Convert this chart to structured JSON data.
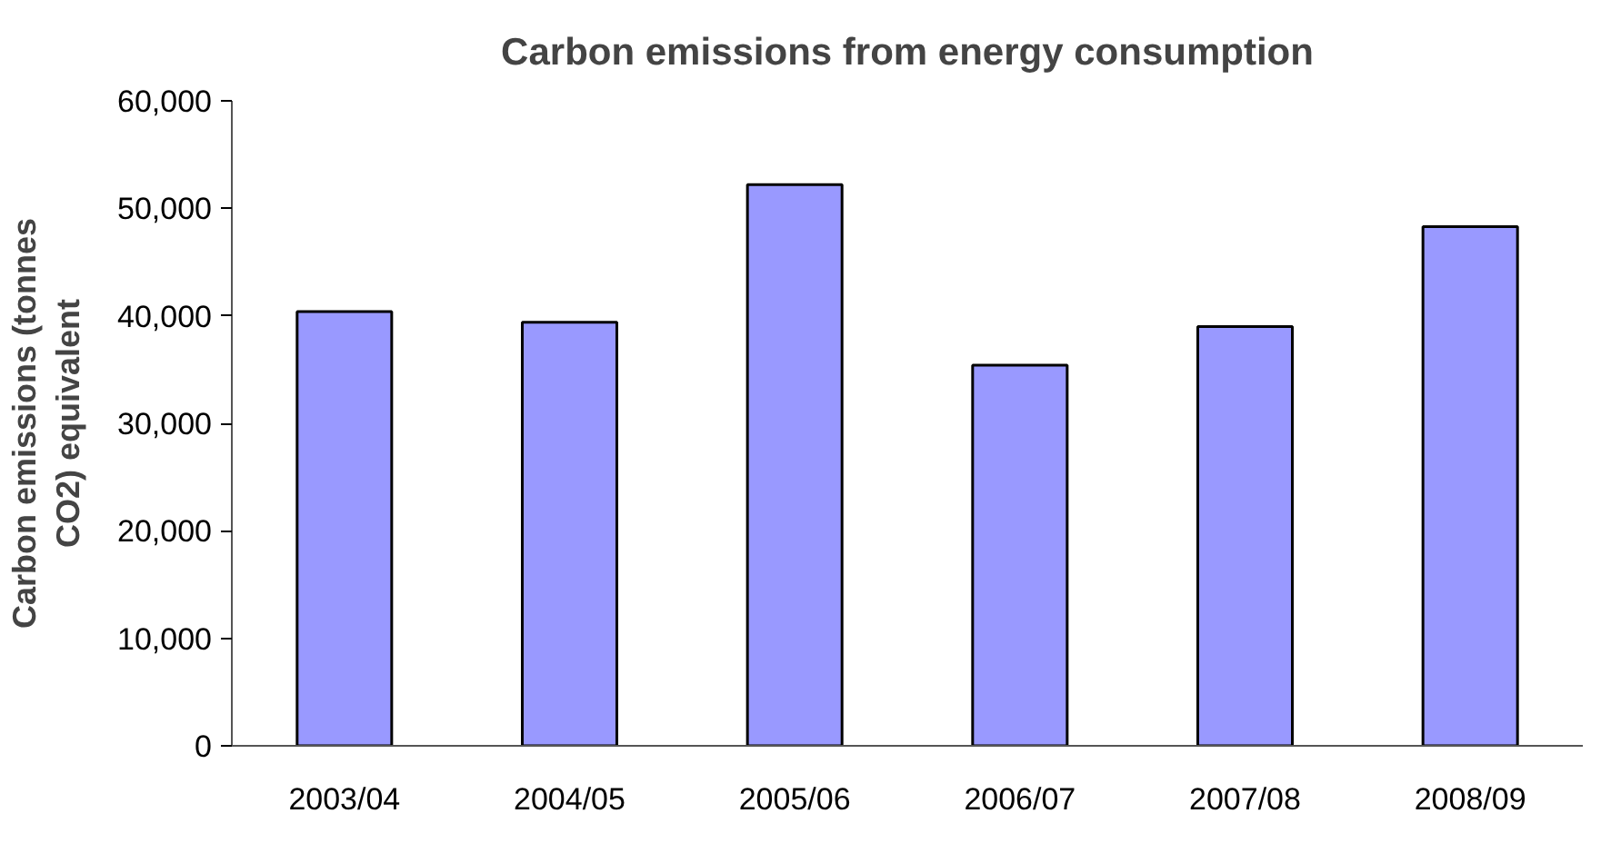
{
  "chart_data": {
    "type": "bar",
    "title": "Carbon emissions from energy consumption",
    "ylabel": "Carbon emissions (tonnes CO2) equivalent",
    "categories": [
      "2003/04",
      "2004/05",
      "2005/06",
      "2006/07",
      "2007/08",
      "2008/09"
    ],
    "values": [
      40400,
      39400,
      52200,
      35400,
      39000,
      48300
    ],
    "color": "#9999ff",
    "ylim": [
      0,
      60000
    ],
    "yticks": [
      {
        "value": 0,
        "label": "0"
      },
      {
        "value": 10000,
        "label": "10,000"
      },
      {
        "value": 20000,
        "label": "20,000"
      },
      {
        "value": 30000,
        "label": "30,000"
      },
      {
        "value": 40000,
        "label": "40,000"
      },
      {
        "value": 50000,
        "label": "50,000"
      },
      {
        "value": 60000,
        "label": "60,000"
      }
    ],
    "grid": false,
    "legend": false
  }
}
